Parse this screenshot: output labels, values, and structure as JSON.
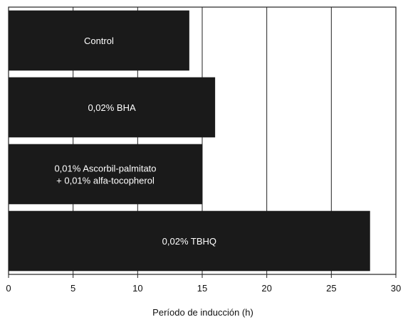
{
  "chart_data": {
    "type": "bar",
    "orientation": "horizontal",
    "title": "",
    "xlabel": "Período de inducción (h)",
    "ylabel": "",
    "xlim": [
      0,
      30
    ],
    "xticks": [
      "0",
      "5",
      "10",
      "15",
      "20",
      "25",
      "30"
    ],
    "grid": "vertical",
    "bar_color": "#1a1a1a",
    "categories": [
      [
        "Control"
      ],
      [
        "0,02% BHA"
      ],
      [
        "0,01% Ascorbil-palmitato",
        "+ 0,01% alfa-tocopherol"
      ],
      [
        "0,02% TBHQ"
      ]
    ],
    "values": [
      14,
      16,
      15,
      28
    ]
  }
}
